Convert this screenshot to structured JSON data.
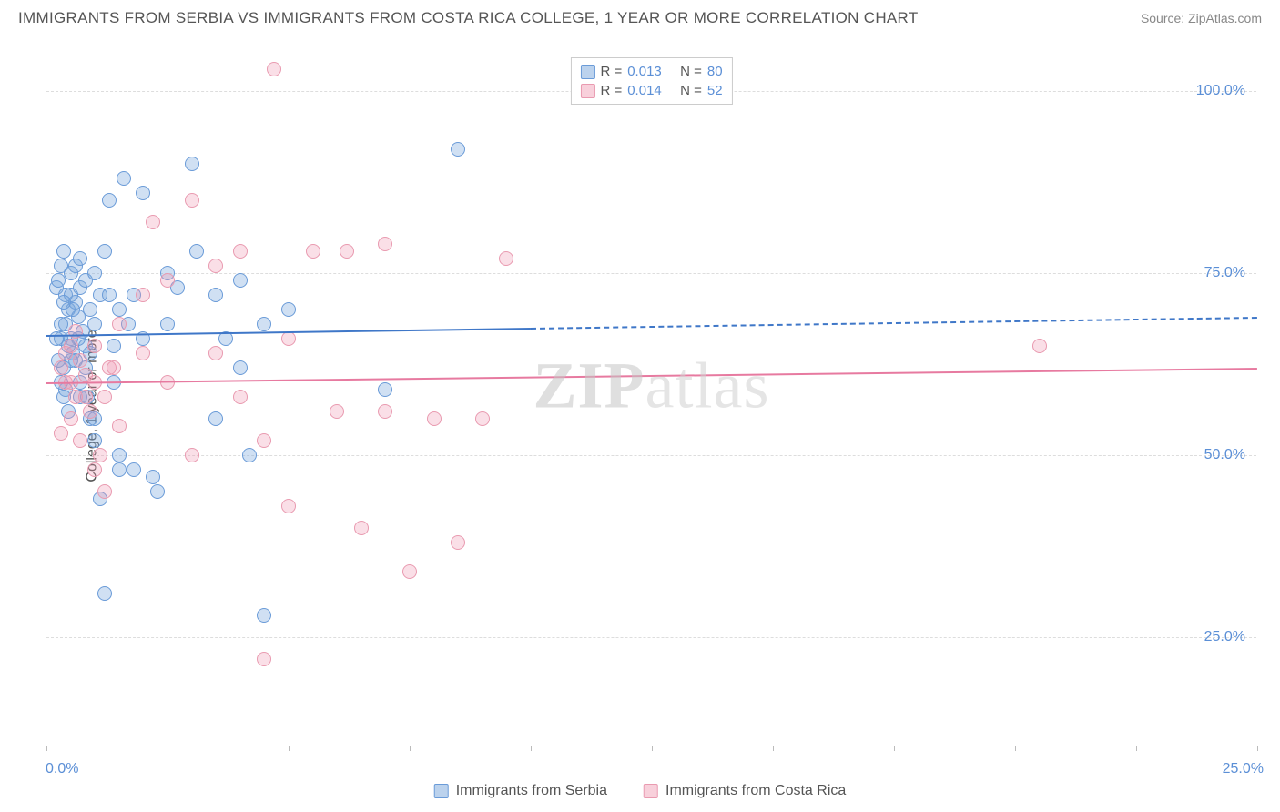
{
  "header": {
    "title": "IMMIGRANTS FROM SERBIA VS IMMIGRANTS FROM COSTA RICA COLLEGE, 1 YEAR OR MORE CORRELATION CHART",
    "source": "Source: ZipAtlas.com"
  },
  "chart": {
    "type": "scatter",
    "ylabel": "College, 1 year or more",
    "background_color": "#ffffff",
    "grid_color": "#dddddd",
    "border_color": "#bbbbbb",
    "xlim": [
      0,
      25
    ],
    "ylim": [
      10,
      105
    ],
    "xticks": [
      0,
      2.5,
      5,
      7.5,
      10,
      12.5,
      15,
      17.5,
      20,
      22.5,
      25
    ],
    "xtick_labels": {
      "0": "0.0%",
      "25": "25.0%"
    },
    "yticks": [
      25,
      50,
      75,
      100
    ],
    "ytick_labels": {
      "25": "25.0%",
      "50": "50.0%",
      "75": "75.0%",
      "100": "100.0%"
    },
    "series": [
      {
        "name": "Immigrants from Serbia",
        "color_fill": "rgba(120,165,220,0.35)",
        "color_stroke": "#6a9bd8",
        "marker": "circle",
        "marker_size": 16,
        "trend": {
          "y_start": 66.5,
          "y_end": 69.0,
          "solid_until_x": 10.0,
          "color": "#3f77c8"
        },
        "R": "0.013",
        "N": "80",
        "points": [
          [
            0.2,
            73
          ],
          [
            0.25,
            74
          ],
          [
            0.3,
            76
          ],
          [
            0.35,
            78
          ],
          [
            0.4,
            72
          ],
          [
            0.4,
            68
          ],
          [
            0.45,
            70
          ],
          [
            0.5,
            75
          ],
          [
            0.5,
            66
          ],
          [
            0.55,
            64
          ],
          [
            0.6,
            71
          ],
          [
            0.6,
            63
          ],
          [
            0.65,
            69
          ],
          [
            0.7,
            73
          ],
          [
            0.7,
            60
          ],
          [
            0.75,
            67
          ],
          [
            0.8,
            65
          ],
          [
            0.8,
            62
          ],
          [
            0.85,
            58
          ],
          [
            0.9,
            55
          ],
          [
            0.9,
            70
          ],
          [
            1.0,
            52
          ],
          [
            1.0,
            68
          ],
          [
            1.1,
            44
          ],
          [
            1.1,
            72
          ],
          [
            0.3,
            66
          ],
          [
            0.35,
            62
          ],
          [
            0.4,
            59
          ],
          [
            0.45,
            56
          ],
          [
            1.3,
            85
          ],
          [
            1.2,
            78
          ],
          [
            1.4,
            60
          ],
          [
            1.5,
            70
          ],
          [
            1.5,
            48
          ],
          [
            1.6,
            88
          ],
          [
            1.8,
            72
          ],
          [
            2.0,
            66
          ],
          [
            2.0,
            86
          ],
          [
            2.2,
            47
          ],
          [
            2.5,
            68
          ],
          [
            2.7,
            73
          ],
          [
            3.0,
            90
          ],
          [
            3.1,
            78
          ],
          [
            3.5,
            72
          ],
          [
            3.5,
            55
          ],
          [
            3.7,
            66
          ],
          [
            4.0,
            74
          ],
          [
            4.0,
            62
          ],
          [
            4.2,
            50
          ],
          [
            4.5,
            28
          ],
          [
            4.5,
            68
          ],
          [
            5.0,
            70
          ],
          [
            0.2,
            66
          ],
          [
            0.25,
            63
          ],
          [
            0.3,
            60
          ],
          [
            0.35,
            58
          ],
          [
            1.2,
            31
          ],
          [
            0.6,
            76
          ],
          [
            0.7,
            77
          ],
          [
            0.8,
            74
          ],
          [
            0.5,
            72
          ],
          [
            0.55,
            70
          ],
          [
            1.0,
            75
          ],
          [
            1.3,
            72
          ],
          [
            1.4,
            65
          ],
          [
            0.65,
            66
          ],
          [
            0.7,
            58
          ],
          [
            1.8,
            48
          ],
          [
            2.3,
            45
          ],
          [
            7.0,
            59
          ],
          [
            8.5,
            92
          ],
          [
            1.5,
            50
          ],
          [
            1.0,
            55
          ],
          [
            0.5,
            63
          ],
          [
            0.45,
            65
          ],
          [
            0.3,
            68
          ],
          [
            0.35,
            71
          ],
          [
            1.7,
            68
          ],
          [
            2.5,
            75
          ],
          [
            0.9,
            64
          ]
        ]
      },
      {
        "name": "Immigrants from Costa Rica",
        "color_fill": "rgba(240,150,175,0.3)",
        "color_stroke": "#e99ab0",
        "marker": "circle",
        "marker_size": 16,
        "trend": {
          "y_start": 60.0,
          "y_end": 62.0,
          "solid_until_x": 25.0,
          "color": "#e77aa0"
        },
        "R": "0.014",
        "N": "52",
        "points": [
          [
            0.3,
            62
          ],
          [
            0.4,
            64
          ],
          [
            0.5,
            60
          ],
          [
            0.5,
            55
          ],
          [
            0.6,
            58
          ],
          [
            0.7,
            63
          ],
          [
            0.7,
            52
          ],
          [
            0.8,
            61
          ],
          [
            0.9,
            56
          ],
          [
            1.0,
            48
          ],
          [
            1.0,
            65
          ],
          [
            1.1,
            50
          ],
          [
            1.2,
            45
          ],
          [
            1.3,
            62
          ],
          [
            1.5,
            54
          ],
          [
            1.5,
            68
          ],
          [
            2.0,
            64
          ],
          [
            2.0,
            72
          ],
          [
            2.2,
            82
          ],
          [
            2.5,
            60
          ],
          [
            2.5,
            74
          ],
          [
            3.0,
            50
          ],
          [
            3.0,
            85
          ],
          [
            3.5,
            64
          ],
          [
            3.5,
            76
          ],
          [
            4.0,
            58
          ],
          [
            4.0,
            78
          ],
          [
            4.5,
            52
          ],
          [
            4.7,
            103
          ],
          [
            5.0,
            43
          ],
          [
            5.0,
            66
          ],
          [
            5.5,
            78
          ],
          [
            6.0,
            56
          ],
          [
            6.2,
            78
          ],
          [
            6.5,
            40
          ],
          [
            7.0,
            56
          ],
          [
            7.0,
            79
          ],
          [
            7.5,
            34
          ],
          [
            8.0,
            55
          ],
          [
            8.5,
            38
          ],
          [
            9.0,
            55
          ],
          [
            9.5,
            77
          ],
          [
            4.5,
            22
          ],
          [
            0.5,
            65
          ],
          [
            0.6,
            67
          ],
          [
            0.4,
            60
          ],
          [
            0.8,
            58
          ],
          [
            1.0,
            60
          ],
          [
            1.2,
            58
          ],
          [
            1.4,
            62
          ],
          [
            20.5,
            65
          ],
          [
            0.3,
            53
          ]
        ]
      }
    ],
    "legend_top": {
      "rows": [
        {
          "swatch": "blue",
          "R_label": "R =",
          "R_val": "0.013",
          "N_label": "N =",
          "N_val": "80"
        },
        {
          "swatch": "pink",
          "R_label": "R =",
          "R_val": "0.014",
          "N_label": "N =",
          "N_val": "52"
        }
      ]
    },
    "legend_bottom": [
      {
        "swatch": "blue",
        "label": "Immigrants from Serbia"
      },
      {
        "swatch": "pink",
        "label": "Immigrants from Costa Rica"
      }
    ],
    "watermark": {
      "part1": "ZIP",
      "part2": "atlas"
    }
  }
}
